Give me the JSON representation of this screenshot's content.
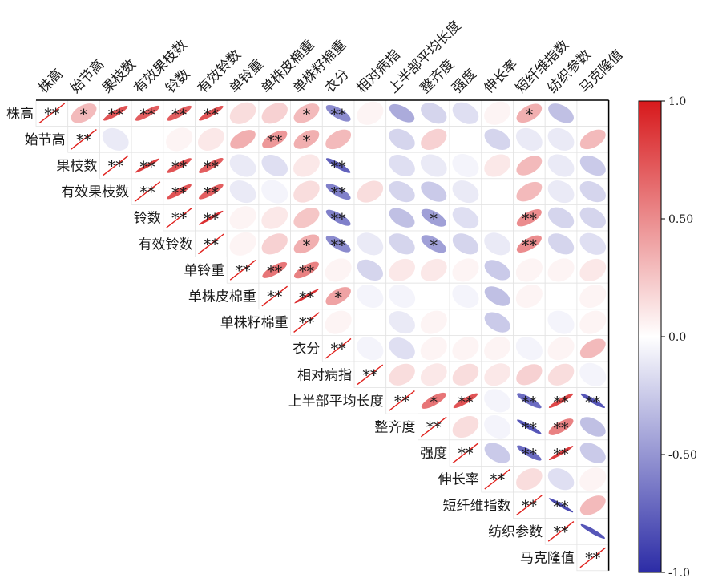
{
  "chart_data": {
    "type": "heatmap",
    "subtype": "correlation-ellipse-upper-triangle",
    "variables": [
      "株高",
      "始节高",
      "果枝数",
      "有效果枝数",
      "铃数",
      "有效铃数",
      "单铃重",
      "单株皮棉重",
      "单株籽棉重",
      "衣分",
      "相对病指",
      "上半部平均长度",
      "整齐度",
      "强度",
      "伸长率",
      "短纤维指数",
      "纺织参数",
      "马克隆值"
    ],
    "value_range": [
      -1.0,
      1.0
    ],
    "colorbar": {
      "ticks": [
        1.0,
        0.5,
        0.0,
        -0.5,
        -1.0
      ],
      "tick_labels": [
        "1.0",
        "0.50",
        "0.0",
        "-0.50",
        "-1.0"
      ],
      "colors": {
        "positive": "#d7191c",
        "zero": "#ffffff",
        "negative": "#2c2ca6"
      }
    },
    "diagonal_mark": "**",
    "matrix": [
      [
        1,
        0.3,
        0.75,
        0.7,
        0.7,
        0.75,
        0.15,
        0.2,
        0.3,
        -0.55,
        0.05,
        -0.4,
        -0.2,
        -0.15,
        0.05,
        0.35,
        -0.3,
        0.0
      ],
      [
        0.3,
        1,
        -0.1,
        0.0,
        0.05,
        0.1,
        0.35,
        0.45,
        0.35,
        0.3,
        0.0,
        -0.2,
        0.2,
        0.0,
        -0.2,
        -0.1,
        -0.1,
        0.3
      ],
      [
        0.75,
        -0.1,
        1,
        0.85,
        0.75,
        0.7,
        -0.1,
        -0.15,
        0.1,
        -0.75,
        0.0,
        -0.15,
        -0.1,
        -0.05,
        0.1,
        0.3,
        -0.1,
        -0.25
      ],
      [
        0.7,
        0.0,
        0.85,
        1,
        0.75,
        0.7,
        -0.1,
        -0.05,
        0.15,
        -0.6,
        0.15,
        -0.2,
        -0.25,
        -0.1,
        0.0,
        0.3,
        -0.1,
        -0.2
      ],
      [
        0.7,
        0.05,
        0.75,
        0.75,
        1,
        0.9,
        0.05,
        0.1,
        0.25,
        -0.6,
        0.0,
        -0.3,
        -0.45,
        -0.15,
        0.0,
        0.5,
        -0.2,
        -0.2
      ],
      [
        0.75,
        0.1,
        0.7,
        0.7,
        0.9,
        1,
        0.05,
        0.2,
        0.35,
        -0.55,
        -0.1,
        -0.2,
        -0.45,
        -0.2,
        -0.1,
        0.5,
        -0.2,
        -0.15
      ],
      [
        0.15,
        0.35,
        -0.1,
        -0.1,
        0.05,
        0.05,
        1,
        0.6,
        0.55,
        0.05,
        -0.2,
        0.1,
        0.1,
        0.05,
        -0.25,
        0.05,
        0.05,
        0.1
      ],
      [
        0.2,
        0.45,
        -0.15,
        -0.05,
        0.1,
        0.2,
        0.6,
        1,
        0.9,
        0.4,
        -0.05,
        -0.05,
        0.0,
        -0.05,
        -0.3,
        0.05,
        0.0,
        0.05
      ],
      [
        0.3,
        0.35,
        0.1,
        0.15,
        0.25,
        0.35,
        0.55,
        0.9,
        1,
        0.05,
        0.0,
        -0.1,
        0.05,
        0.0,
        -0.25,
        0.0,
        -0.05,
        0.05
      ],
      [
        -0.55,
        0.3,
        -0.75,
        -0.6,
        -0.6,
        -0.55,
        0.05,
        0.4,
        0.05,
        1,
        -0.05,
        -0.15,
        0.05,
        0.05,
        0.05,
        -0.05,
        0.05,
        0.3
      ],
      [
        0.05,
        0.0,
        0.0,
        0.15,
        0.0,
        -0.1,
        -0.2,
        -0.05,
        0.0,
        -0.05,
        1,
        0.15,
        0.1,
        0.15,
        0.1,
        0.2,
        0.15,
        -0.05
      ],
      [
        -0.4,
        -0.2,
        -0.15,
        -0.2,
        -0.3,
        -0.2,
        0.1,
        -0.05,
        -0.1,
        -0.15,
        0.15,
        1,
        0.6,
        0.75,
        -0.05,
        -0.7,
        0.8,
        -0.8
      ],
      [
        -0.2,
        0.2,
        -0.1,
        -0.25,
        -0.45,
        -0.45,
        0.1,
        0.0,
        0.05,
        0.05,
        0.1,
        0.6,
        1,
        0.15,
        -0.05,
        -0.8,
        0.55,
        -0.3
      ],
      [
        -0.15,
        0.0,
        -0.05,
        -0.1,
        -0.15,
        -0.2,
        0.05,
        -0.05,
        0.0,
        0.05,
        0.15,
        0.75,
        0.15,
        1,
        -0.25,
        -0.7,
        0.85,
        -0.25
      ],
      [
        0.05,
        -0.2,
        0.1,
        0.0,
        0.0,
        -0.1,
        -0.25,
        -0.3,
        -0.25,
        0.05,
        0.1,
        -0.05,
        -0.05,
        -0.25,
        1,
        0.15,
        -0.15,
        0.05
      ],
      [
        0.35,
        -0.1,
        0.3,
        0.3,
        0.5,
        0.5,
        0.05,
        0.05,
        0.0,
        -0.05,
        0.2,
        -0.7,
        -0.8,
        -0.7,
        0.15,
        1,
        -0.85,
        0.3
      ],
      [
        -0.3,
        -0.1,
        -0.1,
        -0.1,
        -0.2,
        -0.2,
        0.05,
        0.0,
        -0.05,
        0.05,
        0.15,
        0.8,
        0.55,
        0.85,
        -0.15,
        -0.85,
        1,
        -0.8
      ],
      [
        0.0,
        0.3,
        -0.25,
        -0.2,
        -0.2,
        -0.15,
        0.1,
        0.05,
        0.05,
        0.3,
        -0.05,
        -0.8,
        -0.3,
        -0.25,
        0.05,
        0.3,
        -0.8,
        1
      ]
    ],
    "significance": [
      {
        "row": 0,
        "col": 1,
        "mark": "*"
      },
      {
        "row": 0,
        "col": 2,
        "mark": "**"
      },
      {
        "row": 0,
        "col": 3,
        "mark": "**"
      },
      {
        "row": 0,
        "col": 4,
        "mark": "**"
      },
      {
        "row": 0,
        "col": 5,
        "mark": "**"
      },
      {
        "row": 0,
        "col": 8,
        "mark": "*"
      },
      {
        "row": 0,
        "col": 9,
        "mark": "**"
      },
      {
        "row": 0,
        "col": 15,
        "mark": "*"
      },
      {
        "row": 1,
        "col": 7,
        "mark": "**"
      },
      {
        "row": 1,
        "col": 8,
        "mark": "*"
      },
      {
        "row": 2,
        "col": 3,
        "mark": "**"
      },
      {
        "row": 2,
        "col": 4,
        "mark": "**"
      },
      {
        "row": 2,
        "col": 5,
        "mark": "**"
      },
      {
        "row": 2,
        "col": 9,
        "mark": "**"
      },
      {
        "row": 3,
        "col": 4,
        "mark": "**"
      },
      {
        "row": 3,
        "col": 5,
        "mark": "**"
      },
      {
        "row": 3,
        "col": 9,
        "mark": "**"
      },
      {
        "row": 4,
        "col": 5,
        "mark": "**"
      },
      {
        "row": 4,
        "col": 9,
        "mark": "**"
      },
      {
        "row": 4,
        "col": 12,
        "mark": "*"
      },
      {
        "row": 4,
        "col": 15,
        "mark": "**"
      },
      {
        "row": 5,
        "col": 8,
        "mark": "*"
      },
      {
        "row": 5,
        "col": 9,
        "mark": "**"
      },
      {
        "row": 5,
        "col": 12,
        "mark": "*"
      },
      {
        "row": 5,
        "col": 15,
        "mark": "**"
      },
      {
        "row": 6,
        "col": 7,
        "mark": "**"
      },
      {
        "row": 6,
        "col": 8,
        "mark": "**"
      },
      {
        "row": 7,
        "col": 8,
        "mark": "**"
      },
      {
        "row": 7,
        "col": 9,
        "mark": "*"
      },
      {
        "row": 11,
        "col": 12,
        "mark": "*"
      },
      {
        "row": 11,
        "col": 13,
        "mark": "**"
      },
      {
        "row": 11,
        "col": 15,
        "mark": "**"
      },
      {
        "row": 11,
        "col": 16,
        "mark": "**"
      },
      {
        "row": 11,
        "col": 17,
        "mark": "**"
      },
      {
        "row": 12,
        "col": 15,
        "mark": "**"
      },
      {
        "row": 12,
        "col": 16,
        "mark": "**"
      },
      {
        "row": 13,
        "col": 15,
        "mark": "**"
      },
      {
        "row": 13,
        "col": 16,
        "mark": "**"
      },
      {
        "row": 15,
        "col": 16,
        "mark": "**"
      }
    ]
  }
}
